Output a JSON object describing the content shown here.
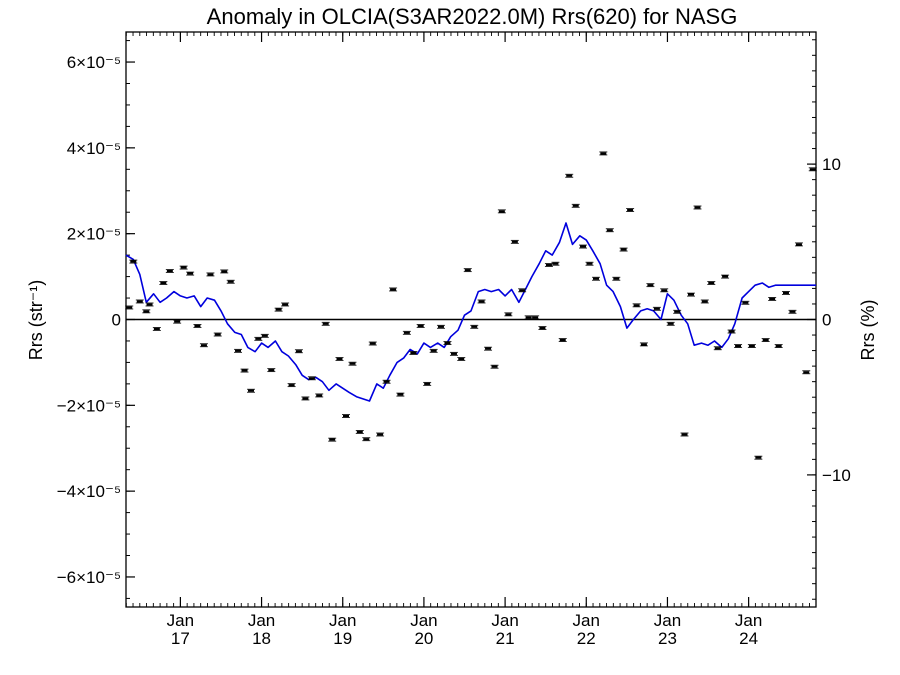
{
  "chart_data": {
    "type": "scatter",
    "title": "Anomaly in OLCIA(S3AR2022.0M) Rrs(620) for NASG",
    "ylabel_left": "Rrs (str⁻¹)",
    "ylabel_right": "Rrs (%)",
    "ylim_left": [
      -6.7e-05,
      6.7e-05
    ],
    "ylim_right": [
      -18.5,
      18.5
    ],
    "xlim": [
      2016.33,
      2024.83
    ],
    "left_ticks": [
      {
        "value": 6e-05,
        "label": "6×10⁻⁵"
      },
      {
        "value": 4e-05,
        "label": "4×10⁻⁵"
      },
      {
        "value": 2e-05,
        "label": "2×10⁻⁵"
      },
      {
        "value": 0,
        "label": "0"
      },
      {
        "value": -2e-05,
        "label": "−2×10⁻⁵"
      },
      {
        "value": -4e-05,
        "label": "−4×10⁻⁵"
      },
      {
        "value": -6e-05,
        "label": "−6×10⁻⁵"
      }
    ],
    "right_ticks": [
      {
        "value": 10,
        "label": "10"
      },
      {
        "value": 0,
        "label": "0"
      },
      {
        "value": -10,
        "label": "−10"
      }
    ],
    "x_ticks": [
      {
        "value": 2017.0,
        "month": "Jan",
        "year": "17"
      },
      {
        "value": 2018.0,
        "month": "Jan",
        "year": "18"
      },
      {
        "value": 2019.0,
        "month": "Jan",
        "year": "19"
      },
      {
        "value": 2020.0,
        "month": "Jan",
        "year": "20"
      },
      {
        "value": 2021.0,
        "month": "Jan",
        "year": "21"
      },
      {
        "value": 2022.0,
        "month": "Jan",
        "year": "22"
      },
      {
        "value": 2023.0,
        "month": "Jan",
        "year": "23"
      },
      {
        "value": 2024.0,
        "month": "Jan",
        "year": "24"
      }
    ],
    "points": {
      "x": [
        2016.37,
        2016.42,
        2016.5,
        2016.58,
        2016.62,
        2016.71,
        2016.79,
        2016.87,
        2016.96,
        2017.04,
        2017.12,
        2017.21,
        2017.29,
        2017.37,
        2017.46,
        2017.54,
        2017.62,
        2017.71,
        2017.79,
        2017.87,
        2017.96,
        2018.04,
        2018.12,
        2018.21,
        2018.29,
        2018.37,
        2018.46,
        2018.54,
        2018.62,
        2018.71,
        2018.79,
        2018.87,
        2018.96,
        2019.04,
        2019.12,
        2019.21,
        2019.29,
        2019.37,
        2019.46,
        2019.54,
        2019.62,
        2019.71,
        2019.79,
        2019.87,
        2019.96,
        2020.04,
        2020.12,
        2020.21,
        2020.29,
        2020.37,
        2020.46,
        2020.54,
        2020.62,
        2020.71,
        2020.79,
        2020.87,
        2020.96,
        2021.04,
        2021.12,
        2021.21,
        2021.29,
        2021.37,
        2021.46,
        2021.54,
        2021.62,
        2021.71,
        2021.79,
        2021.87,
        2021.96,
        2022.04,
        2022.12,
        2022.21,
        2022.29,
        2022.37,
        2022.46,
        2022.54,
        2022.62,
        2022.71,
        2022.79,
        2022.87,
        2022.96,
        2023.04,
        2023.12,
        2023.21,
        2023.29,
        2023.37,
        2023.46,
        2023.54,
        2023.62,
        2023.71,
        2023.79,
        2023.87,
        2023.96,
        2024.04,
        2024.12,
        2024.21,
        2024.29,
        2024.37,
        2024.46,
        2024.54,
        2024.62,
        2024.71,
        2024.79
      ],
      "y": [
        2.8e-06,
        1.35e-05,
        4.2e-06,
        1.9e-06,
        3.5e-06,
        -2.2e-06,
        8.5e-06,
        1.13e-05,
        -5e-07,
        1.21e-05,
        1.07e-05,
        -1.5e-06,
        -6e-06,
        1.05e-05,
        -3.5e-06,
        1.12e-05,
        8.8e-06,
        -7.3e-06,
        -1.19e-05,
        -1.66e-05,
        -4.5e-06,
        -3.8e-06,
        -1.18e-05,
        2.3e-06,
        3.5e-06,
        -1.53e-05,
        -7.4e-06,
        -1.84e-05,
        -1.37e-05,
        -1.77e-05,
        -1e-06,
        -2.8e-05,
        -9.2e-06,
        -2.25e-05,
        -1.03e-05,
        -2.62e-05,
        -2.79e-05,
        -5.6e-06,
        -2.68e-05,
        -1.45e-05,
        7e-06,
        -1.75e-05,
        -3.1e-06,
        -7.8e-06,
        -1.5e-06,
        -1.5e-05,
        -7.3e-06,
        -1.7e-06,
        -5.5e-06,
        -8e-06,
        -9.2e-06,
        1.15e-05,
        -1.7e-06,
        4.2e-06,
        -6.8e-06,
        -1.1e-05,
        2.52e-05,
        1.2e-06,
        1.81e-05,
        6.8e-06,
        5e-07,
        5e-07,
        -2e-06,
        1.27e-05,
        1.3e-05,
        -4.8e-06,
        3.35e-05,
        2.65e-05,
        1.7e-05,
        1.3e-05,
        9.5e-06,
        3.87e-05,
        2.08e-05,
        9.5e-06,
        1.63e-05,
        2.55e-05,
        3.3e-06,
        -5.8e-06,
        8e-06,
        2.5e-06,
        6.8e-06,
        -1e-06,
        1.8e-06,
        -2.68e-05,
        5.8e-06,
        2.61e-05,
        4.2e-06,
        8.5e-06,
        -6.7e-06,
        1e-05,
        -2.8e-06,
        -6.2e-06,
        3.9e-06,
        -6.2e-06,
        -3.22e-05,
        -4.8e-06,
        4.8e-06,
        -6.2e-06,
        6.2e-06,
        1.8e-06,
        1.75e-05,
        -1.23e-05,
        3.5e-05
      ]
    },
    "line": {
      "x": [
        2016.33,
        2016.42,
        2016.5,
        2016.58,
        2016.67,
        2016.75,
        2016.83,
        2016.92,
        2017.0,
        2017.08,
        2017.17,
        2017.25,
        2017.33,
        2017.42,
        2017.5,
        2017.58,
        2017.67,
        2017.75,
        2017.83,
        2017.92,
        2018.0,
        2018.08,
        2018.17,
        2018.25,
        2018.33,
        2018.42,
        2018.5,
        2018.58,
        2018.67,
        2018.75,
        2018.83,
        2018.92,
        2019.0,
        2019.08,
        2019.17,
        2019.25,
        2019.33,
        2019.42,
        2019.5,
        2019.58,
        2019.67,
        2019.75,
        2019.83,
        2019.92,
        2020.0,
        2020.08,
        2020.17,
        2020.25,
        2020.33,
        2020.42,
        2020.5,
        2020.58,
        2020.67,
        2020.75,
        2020.83,
        2020.92,
        2021.0,
        2021.08,
        2021.17,
        2021.25,
        2021.33,
        2021.42,
        2021.5,
        2021.58,
        2021.67,
        2021.75,
        2021.83,
        2021.92,
        2022.0,
        2022.08,
        2022.17,
        2022.25,
        2022.33,
        2022.42,
        2022.5,
        2022.58,
        2022.67,
        2022.75,
        2022.83,
        2022.92,
        2023.0,
        2023.08,
        2023.17,
        2023.25,
        2023.33,
        2023.42,
        2023.5,
        2023.58,
        2023.67,
        2023.75,
        2023.83,
        2023.92,
        2024.0,
        2024.08,
        2024.17,
        2024.25,
        2024.33,
        2024.42,
        2024.5,
        2024.58,
        2024.67,
        2024.75,
        2024.83
      ],
      "y": [
        1.5e-05,
        1.4e-05,
        1.05e-05,
        4e-06,
        6e-06,
        4e-06,
        5e-06,
        6.5e-06,
        5.5e-06,
        5e-06,
        5.5e-06,
        3e-06,
        5e-06,
        4.5e-06,
        2e-06,
        -1e-06,
        -3e-06,
        -3.5e-06,
        -6.5e-06,
        -7.5e-06,
        -5.5e-06,
        -6.5e-06,
        -5e-06,
        -7.5e-06,
        -8.5e-06,
        -1.05e-05,
        -1.3e-05,
        -1.4e-05,
        -1.35e-05,
        -1.45e-05,
        -1.65e-05,
        -1.5e-05,
        -1.6e-05,
        -1.7e-05,
        -1.8e-05,
        -1.85e-05,
        -1.9e-05,
        -1.5e-05,
        -1.6e-05,
        -1.3e-05,
        -1e-05,
        -9e-06,
        -7e-06,
        -8e-06,
        -5.5e-06,
        -6.5e-06,
        -5.5e-06,
        -6.5e-06,
        -4e-06,
        -2.5e-06,
        1e-06,
        2e-06,
        6.5e-06,
        7e-06,
        6.5e-06,
        7e-06,
        5.5e-06,
        7e-06,
        4e-06,
        7e-06,
        1e-05,
        1.3e-05,
        1.6e-05,
        1.5e-05,
        1.8e-05,
        2.25e-05,
        1.75e-05,
        1.95e-05,
        1.85e-05,
        1.6e-05,
        1.3e-05,
        8e-06,
        6.5e-06,
        3e-06,
        -2e-06,
        0,
        2e-06,
        2.5e-06,
        2e-06,
        0,
        6e-06,
        4.5e-06,
        1e-06,
        -1e-06,
        -6e-06,
        -5.5e-06,
        -6e-06,
        -5e-06,
        -6.5e-06,
        -4.5e-06,
        -1e-06,
        5e-06,
        6.5e-06,
        8e-06,
        8.5e-06,
        7.5e-06,
        8e-06,
        8e-06,
        8e-06,
        8e-06,
        8e-06,
        8e-06,
        8e-06
      ]
    },
    "line_color": "#0000dd",
    "point_color": "#000000",
    "zero_line": true,
    "legend": "none",
    "grid": false
  }
}
